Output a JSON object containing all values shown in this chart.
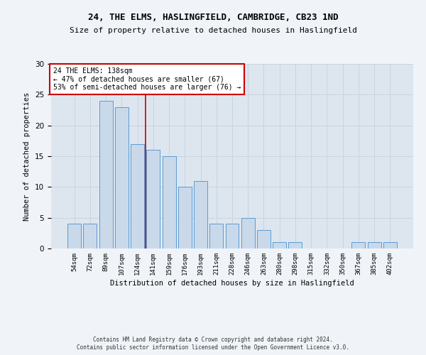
{
  "title_line1": "24, THE ELMS, HASLINGFIELD, CAMBRIDGE, CB23 1ND",
  "title_line2": "Size of property relative to detached houses in Haslingfield",
  "xlabel": "Distribution of detached houses by size in Haslingfield",
  "ylabel": "Number of detached properties",
  "bar_labels": [
    "54sqm",
    "72sqm",
    "89sqm",
    "107sqm",
    "124sqm",
    "141sqm",
    "159sqm",
    "176sqm",
    "193sqm",
    "211sqm",
    "228sqm",
    "246sqm",
    "263sqm",
    "280sqm",
    "298sqm",
    "315sqm",
    "332sqm",
    "350sqm",
    "367sqm",
    "385sqm",
    "402sqm"
  ],
  "bar_values": [
    4,
    4,
    24,
    23,
    17,
    16,
    15,
    10,
    11,
    4,
    4,
    5,
    3,
    1,
    1,
    0,
    0,
    0,
    1,
    1,
    1
  ],
  "bar_color": "#c9d9ea",
  "bar_edge_color": "#5b9bd5",
  "annotation_line1": "24 THE ELMS: 138sqm",
  "annotation_line2": "← 47% of detached houses are smaller (67)",
  "annotation_line3": "53% of semi-detached houses are larger (76) →",
  "vline_color": "#cc0000",
  "vline_position": 4.5,
  "ylim": [
    0,
    30
  ],
  "yticks": [
    0,
    5,
    10,
    15,
    20,
    25,
    30
  ],
  "footer_line1": "Contains HM Land Registry data © Crown copyright and database right 2024.",
  "footer_line2": "Contains public sector information licensed under the Open Government Licence v3.0.",
  "annotation_box_color": "#ffffff",
  "annotation_box_edge": "#cc0000",
  "grid_color": "#c8d4e0",
  "background_color": "#dde6ef",
  "fig_background": "#f0f4f8"
}
